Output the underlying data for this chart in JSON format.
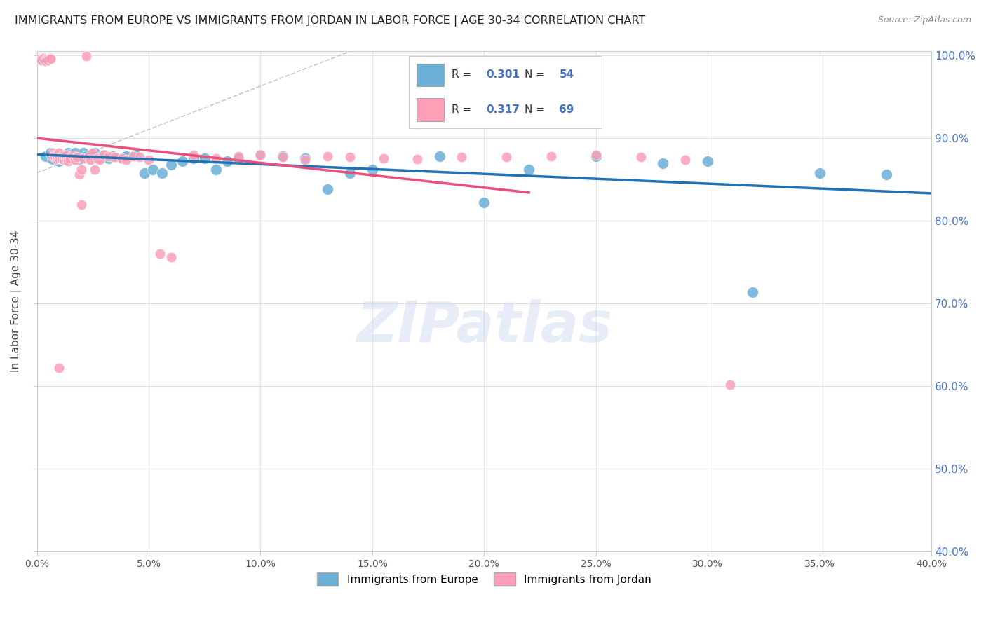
{
  "title": "IMMIGRANTS FROM EUROPE VS IMMIGRANTS FROM JORDAN IN LABOR FORCE | AGE 30-34 CORRELATION CHART",
  "source": "Source: ZipAtlas.com",
  "ylabel": "In Labor Force | Age 30-34",
  "x_min": 0.0,
  "x_max": 0.4,
  "y_min": 0.4,
  "y_max": 1.005,
  "blue_R": 0.301,
  "blue_N": 54,
  "pink_R": 0.317,
  "pink_N": 69,
  "blue_color": "#6baed6",
  "blue_line_color": "#2171b5",
  "pink_color": "#fc9fb7",
  "pink_line_color": "#e8507a",
  "blue_scatter_x": [
    0.004,
    0.006,
    0.007,
    0.009,
    0.01,
    0.011,
    0.012,
    0.013,
    0.014,
    0.015,
    0.016,
    0.017,
    0.018,
    0.019,
    0.02,
    0.021,
    0.022,
    0.023,
    0.024,
    0.025,
    0.026,
    0.028,
    0.03,
    0.032,
    0.034,
    0.038,
    0.04,
    0.044,
    0.048,
    0.052,
    0.056,
    0.06,
    0.065,
    0.07,
    0.075,
    0.08,
    0.085,
    0.09,
    0.1,
    0.11,
    0.12,
    0.13,
    0.14,
    0.15,
    0.17,
    0.18,
    0.2,
    0.22,
    0.25,
    0.28,
    0.3,
    0.32,
    0.35,
    0.38
  ],
  "blue_scatter_y": [
    0.878,
    0.882,
    0.875,
    0.876,
    0.872,
    0.88,
    0.876,
    0.878,
    0.882,
    0.88,
    0.876,
    0.882,
    0.878,
    0.874,
    0.876,
    0.882,
    0.878,
    0.876,
    0.88,
    0.878,
    0.882,
    0.876,
    0.88,
    0.876,
    0.878,
    0.876,
    0.878,
    0.88,
    0.858,
    0.862,
    0.858,
    0.868,
    0.872,
    0.876,
    0.876,
    0.862,
    0.872,
    0.876,
    0.88,
    0.878,
    0.876,
    0.838,
    0.858,
    0.862,
    0.918,
    0.878,
    0.822,
    0.862,
    0.878,
    0.87,
    0.872,
    0.714,
    0.858,
    0.856
  ],
  "pink_scatter_x": [
    0.001,
    0.002,
    0.002,
    0.003,
    0.004,
    0.004,
    0.005,
    0.005,
    0.006,
    0.006,
    0.007,
    0.007,
    0.008,
    0.008,
    0.009,
    0.009,
    0.01,
    0.01,
    0.011,
    0.011,
    0.012,
    0.012,
    0.013,
    0.013,
    0.014,
    0.014,
    0.015,
    0.016,
    0.017,
    0.018,
    0.019,
    0.02,
    0.02,
    0.021,
    0.022,
    0.023,
    0.024,
    0.025,
    0.026,
    0.027,
    0.028,
    0.03,
    0.032,
    0.035,
    0.038,
    0.04,
    0.043,
    0.046,
    0.05,
    0.055,
    0.06,
    0.07,
    0.08,
    0.09,
    0.1,
    0.11,
    0.12,
    0.13,
    0.14,
    0.155,
    0.17,
    0.19,
    0.21,
    0.23,
    0.25,
    0.27,
    0.29,
    0.31,
    0.01
  ],
  "pink_scatter_y": [
    0.996,
    0.996,
    0.994,
    0.997,
    0.995,
    0.993,
    0.996,
    0.994,
    0.997,
    0.996,
    0.878,
    0.882,
    0.88,
    0.878,
    0.875,
    0.878,
    0.882,
    0.876,
    0.878,
    0.875,
    0.874,
    0.88,
    0.876,
    0.879,
    0.875,
    0.872,
    0.876,
    0.879,
    0.874,
    0.877,
    0.856,
    0.862,
    0.82,
    0.876,
    0.999,
    0.877,
    0.874,
    0.882,
    0.862,
    0.876,
    0.874,
    0.88,
    0.878,
    0.877,
    0.876,
    0.874,
    0.878,
    0.877,
    0.874,
    0.76,
    0.756,
    0.88,
    0.876,
    0.878,
    0.88,
    0.877,
    0.874,
    0.878,
    0.877,
    0.876,
    0.875,
    0.877,
    0.877,
    0.878,
    0.88,
    0.877,
    0.874,
    0.602,
    0.622
  ],
  "watermark": "ZIPatlas",
  "grid_color": "#e0e0e0",
  "background_color": "#ffffff"
}
